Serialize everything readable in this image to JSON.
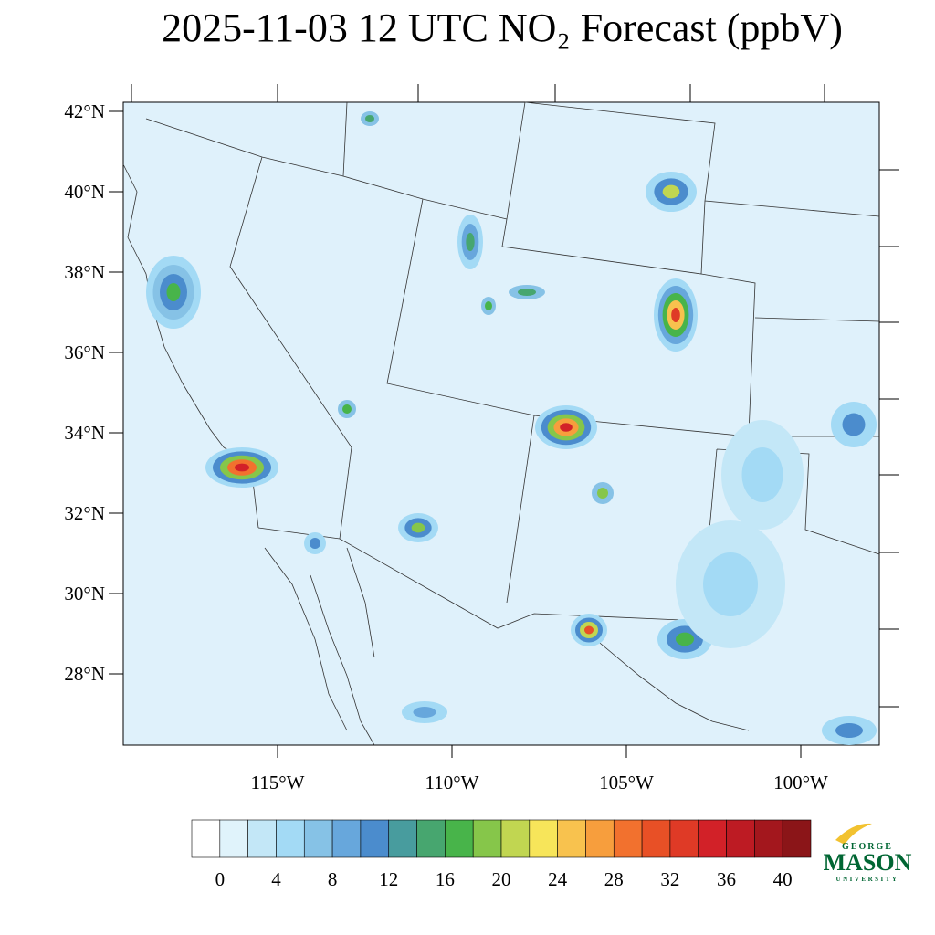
{
  "map": {
    "title": "2025-11-03 12 UTC NO₂ Forecast (ppbV)",
    "lat_ticks": [
      {
        "value": 42,
        "label": "42°N"
      },
      {
        "value": 40,
        "label": "40°N"
      },
      {
        "value": 38,
        "label": "38°N"
      },
      {
        "value": 36,
        "label": "36°N"
      },
      {
        "value": 34,
        "label": "34°N"
      },
      {
        "value": 32,
        "label": "32°N"
      },
      {
        "value": 30,
        "label": "30°N"
      },
      {
        "value": 28,
        "label": "28°N"
      }
    ],
    "lon_ticks": [
      {
        "value": 115,
        "label": "115°W"
      },
      {
        "value": 110,
        "label": "110°W"
      },
      {
        "value": 105,
        "label": "105°W"
      },
      {
        "value": 100,
        "label": "100°W"
      }
    ],
    "colorbar": {
      "ticks": [
        0,
        4,
        8,
        12,
        16,
        20,
        24,
        28,
        32,
        36,
        40
      ],
      "colors": [
        "#ffffff",
        "#e0f3fb",
        "#c3e7f7",
        "#a3daf5",
        "#86c2e6",
        "#67a7dc",
        "#4b8ccd",
        "#489c9e",
        "#47a66f",
        "#48b44a",
        "#86c64a",
        "#c1d651",
        "#f7e55a",
        "#f8c24e",
        "#f79e3d",
        "#f2712e",
        "#e85026",
        "#df3a26",
        "#d22128",
        "#bd1b23",
        "#a3171d",
        "#8b1518"
      ]
    },
    "logo": {
      "line1": "GEORGE",
      "line2": "MASON",
      "line3": "UNIVERSITY"
    }
  }
}
